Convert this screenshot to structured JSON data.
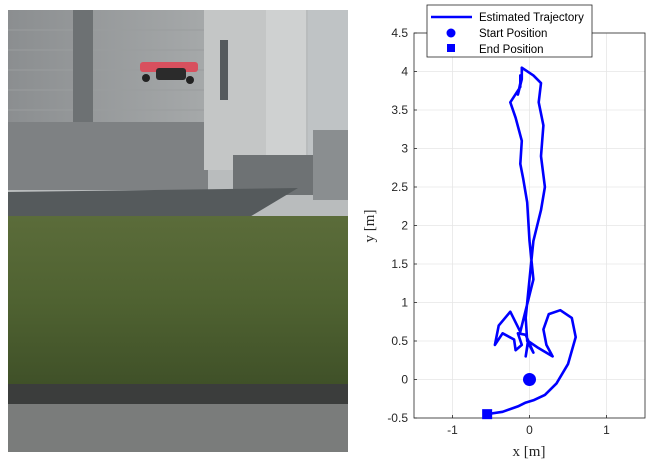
{
  "chart_data": {
    "type": "line",
    "xlabel": "x [m]",
    "ylabel": "y [m]",
    "xlim": [
      -1.5,
      1.5
    ],
    "ylim": [
      -0.5,
      4.5
    ],
    "xticks": [
      -1,
      0,
      1
    ],
    "xtick_labels": [
      "-1",
      "0",
      "1"
    ],
    "yticks": [
      -0.5,
      0,
      0.5,
      1,
      1.5,
      2,
      2.5,
      3,
      3.5,
      4,
      4.5
    ],
    "ytick_labels": [
      "-0.5",
      "0",
      "0.5",
      "1",
      "1.5",
      "2",
      "2.5",
      "3",
      "3.5",
      "4",
      "4.5"
    ],
    "grid": true,
    "legend_position": "top",
    "legend": [
      "Estimated Trajectory",
      "Start Position",
      "End Position"
    ],
    "series_color": "#0000ff",
    "series": [
      {
        "name": "Estimated Trajectory",
        "x": [
          -0.55,
          -0.35,
          -0.15,
          -0.05,
          0.05,
          0.2,
          0.35,
          0.5,
          0.6,
          0.55,
          0.4,
          0.25,
          0.18,
          0.22,
          0.3,
          0.1,
          -0.02,
          -0.05,
          -0.02,
          0.05,
          -0.05,
          -0.15,
          -0.1,
          -0.18,
          -0.2,
          -0.35,
          -0.45,
          -0.4,
          -0.25,
          -0.12,
          -0.05,
          0.05,
          0.0,
          -0.03,
          -0.08,
          -0.12,
          -0.1,
          -0.18,
          -0.25,
          -0.12,
          -0.12,
          -0.1,
          -0.12,
          -0.15,
          -0.1,
          -0.1,
          0.05,
          0.15,
          0.12,
          0.18,
          0.15,
          0.2,
          0.15,
          0.05,
          0.0,
          -0.05,
          -0.03
        ],
        "y": [
          -0.45,
          -0.42,
          -0.35,
          -0.3,
          -0.27,
          -0.2,
          -0.05,
          0.2,
          0.55,
          0.8,
          0.9,
          0.85,
          0.65,
          0.45,
          0.3,
          0.42,
          0.5,
          0.3,
          0.48,
          0.35,
          0.58,
          0.6,
          0.45,
          0.38,
          0.52,
          0.6,
          0.45,
          0.7,
          0.88,
          0.62,
          0.9,
          1.3,
          1.8,
          2.3,
          2.6,
          2.8,
          3.1,
          3.4,
          3.6,
          3.8,
          3.95,
          3.9,
          3.85,
          3.7,
          3.9,
          4.05,
          3.95,
          3.85,
          3.6,
          3.3,
          2.9,
          2.5,
          2.2,
          1.8,
          1.3,
          0.8,
          0.5
        ]
      }
    ],
    "start_position": {
      "x": 0.0,
      "y": 0.0
    },
    "end_position": {
      "x": -0.55,
      "y": -0.45
    }
  }
}
